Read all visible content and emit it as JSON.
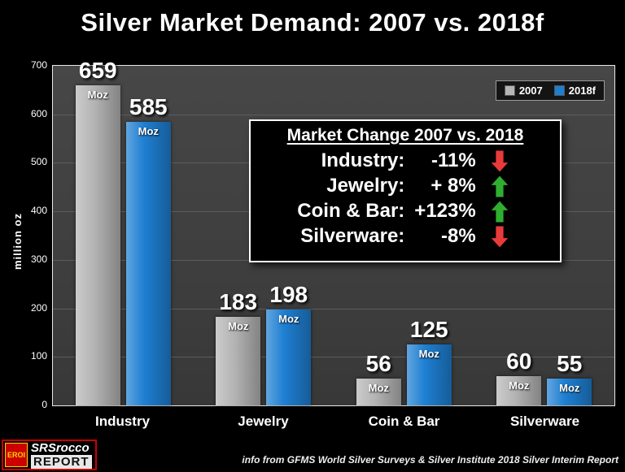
{
  "chart_data": {
    "type": "bar",
    "title": "Silver Market Demand:  2007 vs. 2018f",
    "categories": [
      "Industry",
      "Jewelry",
      "Coin & Bar",
      "Silverware"
    ],
    "series": [
      {
        "name": "2007",
        "color": "#b5b5b5",
        "values": [
          659,
          183,
          56,
          60
        ]
      },
      {
        "name": "2018f",
        "color": "#1e7fd2",
        "values": [
          585,
          198,
          125,
          55
        ]
      }
    ],
    "unit_label": "Moz",
    "ylabel": "million oz",
    "ylim": [
      0,
      700
    ],
    "ytick_step": 100,
    "grid": true,
    "legend_position": "top-right"
  },
  "inset": {
    "title": "Market Change 2007 vs. 2018",
    "rows": [
      {
        "label": "Industry:",
        "value": "-11%",
        "direction": "down"
      },
      {
        "label": "Jewelry:",
        "value": "+ 8%",
        "direction": "up"
      },
      {
        "label": "Coin & Bar:",
        "value": "+123%",
        "direction": "up"
      },
      {
        "label": "Silverware:",
        "value": "-8%",
        "direction": "down"
      }
    ],
    "up_color": "#2fae2f",
    "down_color": "#e93a3a"
  },
  "footer": {
    "source_note": "info from GFMS World Silver Surveys & Silver Institute 2018 Silver Interim Report",
    "logo_badge": "EROI",
    "logo_line1": "SRSrocco",
    "logo_line2": "REPORT"
  }
}
